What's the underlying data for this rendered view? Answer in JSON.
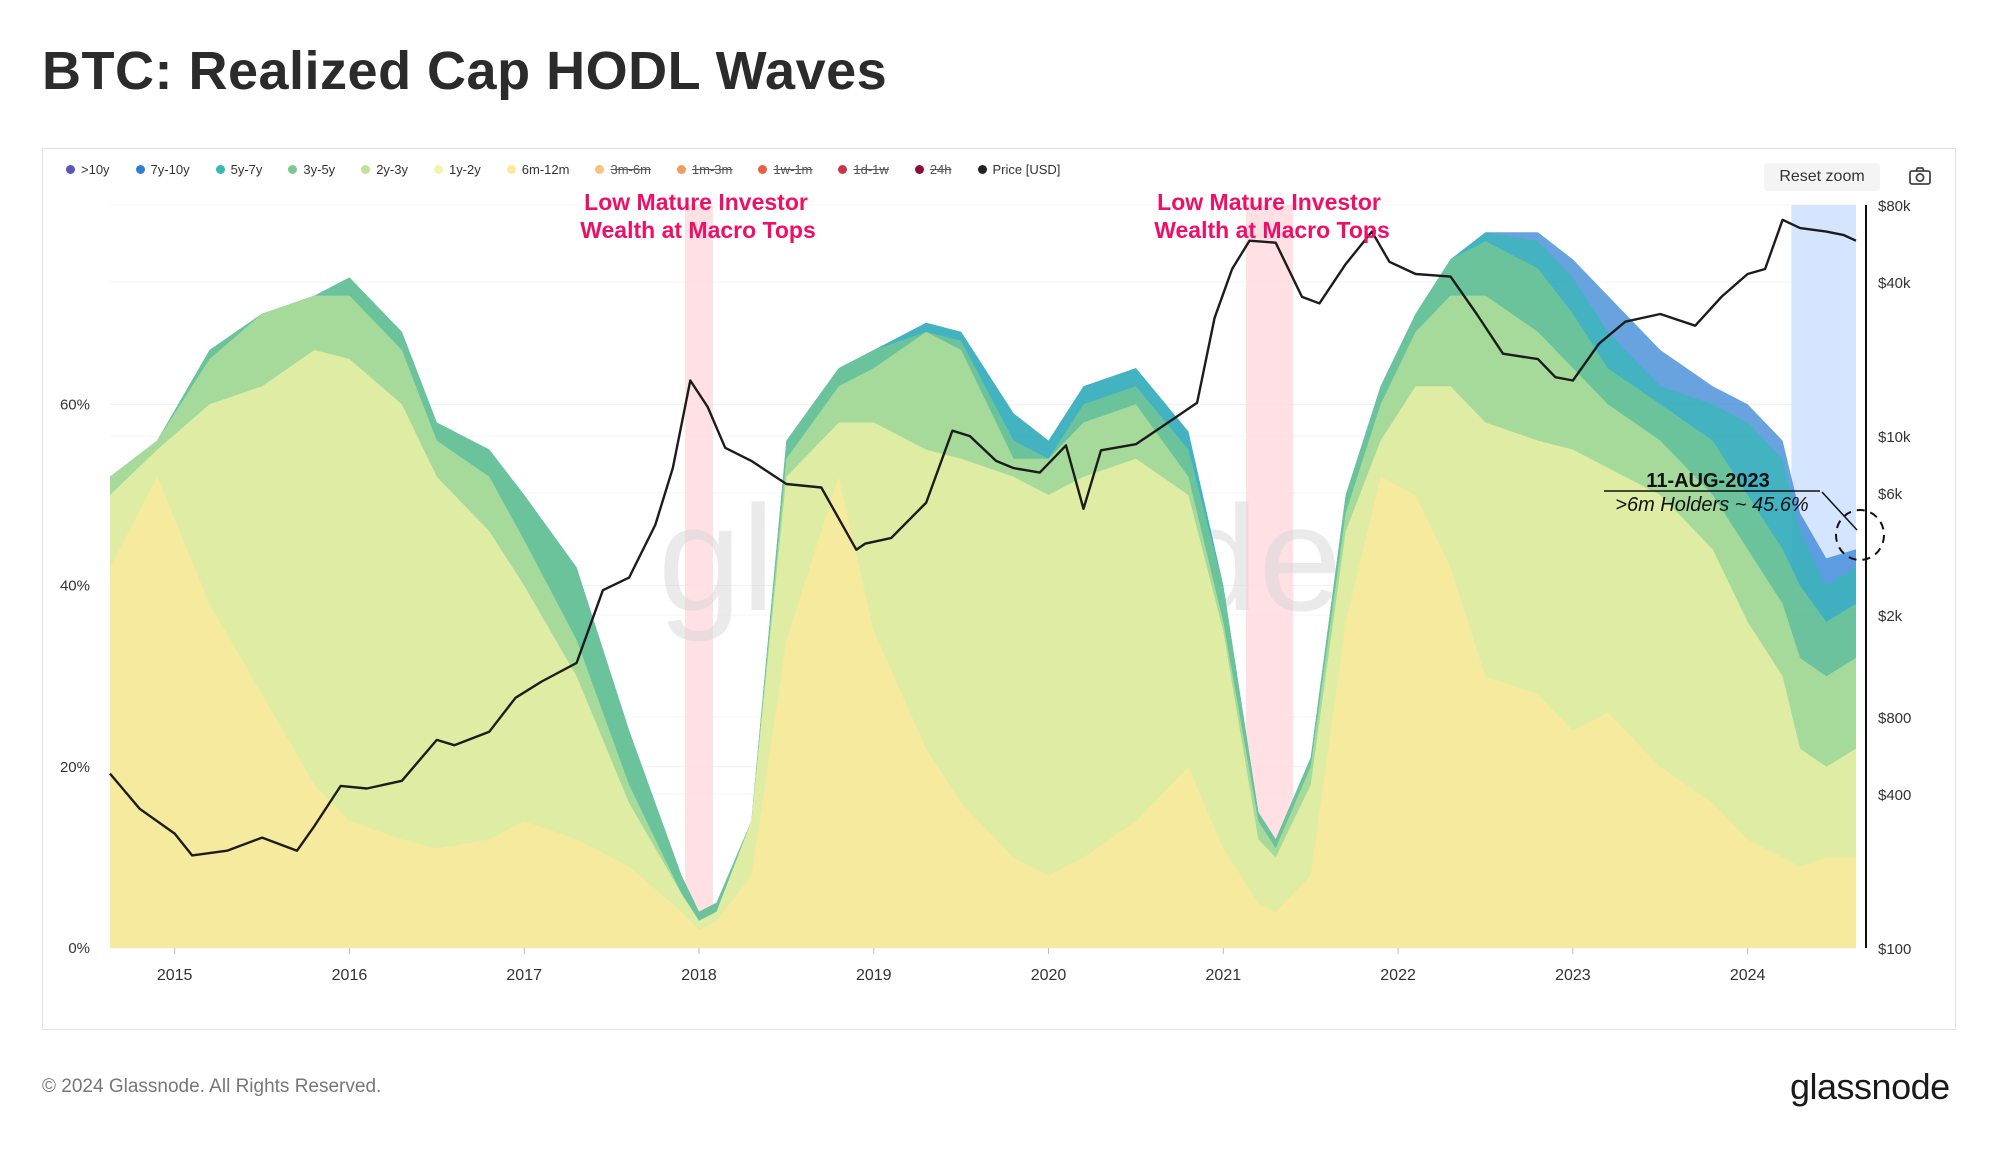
{
  "page": {
    "title": "BTC: Realized Cap HODL Waves",
    "copyright": "© 2024 Glassnode. All Rights Reserved.",
    "brand": "glassnode",
    "watermark": "glassnode",
    "reset_zoom": "Reset zoom"
  },
  "legend": [
    {
      "label": ">10y",
      "color": "#5b55b5",
      "enabled": true
    },
    {
      "label": "7y-10y",
      "color": "#2e7fd4",
      "enabled": true
    },
    {
      "label": "5y-7y",
      "color": "#34b9b4",
      "enabled": true
    },
    {
      "label": "3y-5y",
      "color": "#7cc98d",
      "enabled": true
    },
    {
      "label": "2y-3y",
      "color": "#bde39b",
      "enabled": true
    },
    {
      "label": "1y-2y",
      "color": "#f5f3a8",
      "enabled": true
    },
    {
      "label": "6m-12m",
      "color": "#fde99a",
      "enabled": true
    },
    {
      "label": "3m-6m",
      "color": "#f7c27a",
      "enabled": false
    },
    {
      "label": "1m-3m",
      "color": "#f39b5c",
      "enabled": false
    },
    {
      "label": "1w-1m",
      "color": "#e8603f",
      "enabled": false
    },
    {
      "label": "1d-1w",
      "color": "#c9364a",
      "enabled": false
    },
    {
      "label": "24h",
      "color": "#8e0c3a",
      "enabled": false
    },
    {
      "label": "Price [USD]",
      "color": "#222222",
      "enabled": true
    }
  ],
  "annotations": {
    "macro_top_1": [
      "Low Mature Investor",
      "Wealth at Macro Tops"
    ],
    "macro_top_2": [
      "Low Mature Investor",
      "Wealth at Macro Tops"
    ],
    "callout_date": "11-AUG-2023",
    "callout_text": ">6m Holders ~ 45.6%",
    "accent_color": "#ee1066"
  },
  "chart_data": {
    "type": "area",
    "title": "BTC: Realized Cap HODL Waves",
    "x_ticks": [
      "2015",
      "2016",
      "2017",
      "2018",
      "2019",
      "2020",
      "2021",
      "2022",
      "2023",
      "2024"
    ],
    "xlim": [
      2014.63,
      2024.62
    ],
    "y_left": {
      "ticks": [
        "0%",
        "20%",
        "40%",
        "60%"
      ],
      "values": [
        0,
        20,
        40,
        60
      ],
      "range": [
        0,
        82
      ]
    },
    "y_right": {
      "ticks": [
        "$100",
        "$400",
        "$800",
        "$2k",
        "$6k",
        "$10k",
        "$40k",
        "$80k"
      ],
      "values": [
        100,
        400,
        800,
        2000,
        6000,
        10000,
        40000,
        80000
      ],
      "scale": "log",
      "range": [
        100,
        80000
      ]
    },
    "highlight_bands": [
      {
        "from": 2017.92,
        "to": 2018.08,
        "color": "#ffdadf"
      },
      {
        "from": 2021.13,
        "to": 2021.4,
        "color": "#ffdadf"
      },
      {
        "from": 2024.25,
        "to": 2024.62,
        "color": "#cfe0ff"
      }
    ],
    "x": [
      2014.63,
      2014.9,
      2015.2,
      2015.5,
      2015.8,
      2016.0,
      2016.3,
      2016.5,
      2016.8,
      2017.0,
      2017.3,
      2017.6,
      2017.9,
      2018.0,
      2018.1,
      2018.3,
      2018.5,
      2018.8,
      2019.0,
      2019.3,
      2019.5,
      2019.8,
      2020.0,
      2020.2,
      2020.5,
      2020.8,
      2021.0,
      2021.2,
      2021.3,
      2021.5,
      2021.7,
      2021.9,
      2022.1,
      2022.3,
      2022.5,
      2022.8,
      2023.0,
      2023.2,
      2023.5,
      2023.8,
      2024.0,
      2024.2,
      2024.3,
      2024.45,
      2024.62
    ],
    "series": [
      {
        "name": "6m-12m",
        "cumulative": [
          42,
          52,
          38,
          28,
          18,
          14,
          12,
          11,
          12,
          14,
          12,
          9,
          4,
          2,
          3,
          8,
          34,
          52,
          35,
          22,
          16,
          10,
          8,
          10,
          14,
          20,
          11,
          5,
          4,
          8,
          36,
          52,
          50,
          42,
          30,
          28,
          24,
          26,
          20,
          16,
          12,
          10,
          9,
          10,
          10
        ]
      },
      {
        "name": "1y-2y",
        "cumulative": [
          50,
          55,
          60,
          62,
          66,
          65,
          60,
          52,
          46,
          40,
          30,
          16,
          6,
          3,
          4,
          14,
          52,
          58,
          58,
          55,
          54,
          52,
          50,
          52,
          54,
          50,
          35,
          12,
          10,
          18,
          46,
          56,
          62,
          62,
          58,
          56,
          55,
          53,
          50,
          44,
          36,
          30,
          22,
          20,
          22
        ]
      },
      {
        "name": "2y-3y",
        "cumulative": [
          52,
          56,
          65,
          70,
          72,
          72,
          66,
          56,
          52,
          45,
          34,
          18,
          6,
          3,
          4,
          14,
          54,
          62,
          64,
          68,
          66,
          54,
          54,
          58,
          60,
          52,
          36,
          14,
          11,
          20,
          48,
          60,
          68,
          72,
          72,
          68,
          64,
          60,
          56,
          50,
          44,
          38,
          32,
          30,
          32
        ]
      },
      {
        "name": "3y-5y",
        "cumulative": [
          52,
          56,
          66,
          70,
          72,
          74,
          68,
          58,
          55,
          50,
          42,
          24,
          8,
          4,
          5,
          14,
          56,
          64,
          66,
          68,
          67,
          56,
          54,
          60,
          62,
          55,
          40,
          15,
          12,
          21,
          50,
          62,
          70,
          76,
          78,
          75,
          70,
          64,
          60,
          56,
          50,
          44,
          40,
          36,
          38
        ]
      },
      {
        "name": "5y-7y",
        "cumulative": [
          52,
          56,
          66,
          70,
          72,
          74,
          68,
          58,
          55,
          50,
          42,
          24,
          8,
          4,
          5,
          14,
          56,
          64,
          66,
          69,
          68,
          59,
          56,
          62,
          64,
          57,
          40,
          15,
          12,
          21,
          50,
          62,
          70,
          76,
          79,
          78,
          74,
          68,
          62,
          60,
          58,
          54,
          46,
          40,
          42
        ]
      },
      {
        "name": "7y-10y",
        "cumulative": [
          52,
          56,
          66,
          70,
          72,
          74,
          68,
          58,
          55,
          50,
          42,
          24,
          8,
          4,
          5,
          14,
          56,
          64,
          66,
          69,
          68,
          59,
          56,
          62,
          64,
          57,
          40,
          15,
          12,
          21,
          50,
          62,
          70,
          76,
          79,
          79,
          76,
          72,
          66,
          62,
          60,
          56,
          48,
          43,
          44
        ]
      }
    ],
    "price": {
      "x": [
        2014.63,
        2014.8,
        2015.0,
        2015.1,
        2015.3,
        2015.5,
        2015.7,
        2015.8,
        2015.95,
        2016.1,
        2016.3,
        2016.5,
        2016.6,
        2016.8,
        2016.95,
        2017.1,
        2017.3,
        2017.45,
        2017.6,
        2017.75,
        2017.85,
        2017.95,
        2018.05,
        2018.15,
        2018.3,
        2018.5,
        2018.7,
        2018.9,
        2018.95,
        2019.1,
        2019.3,
        2019.45,
        2019.55,
        2019.7,
        2019.8,
        2019.95,
        2020.1,
        2020.2,
        2020.3,
        2020.5,
        2020.7,
        2020.85,
        2020.95,
        2021.05,
        2021.15,
        2021.3,
        2021.45,
        2021.55,
        2021.7,
        2021.85,
        2021.95,
        2022.1,
        2022.3,
        2022.45,
        2022.6,
        2022.8,
        2022.9,
        2023.0,
        2023.15,
        2023.3,
        2023.5,
        2023.7,
        2023.85,
        2024.0,
        2024.1,
        2024.2,
        2024.3,
        2024.45,
        2024.55,
        2024.62
      ],
      "values": [
        480,
        350,
        280,
        230,
        240,
        270,
        240,
        300,
        430,
        420,
        450,
        650,
        620,
        700,
        950,
        1100,
        1300,
        2500,
        2800,
        4500,
        7500,
        16500,
        13000,
        9000,
        8000,
        6500,
        6300,
        3600,
        3800,
        4000,
        5500,
        10500,
        10000,
        8000,
        7500,
        7200,
        9200,
        5200,
        8800,
        9300,
        11500,
        13500,
        29000,
        45000,
        58000,
        57000,
        35000,
        33000,
        47000,
        63000,
        48000,
        43000,
        42000,
        30000,
        21000,
        20000,
        17000,
        16500,
        23000,
        28000,
        30000,
        27000,
        35000,
        43000,
        45000,
        70000,
        65000,
        63000,
        61000,
        58000
      ]
    }
  }
}
